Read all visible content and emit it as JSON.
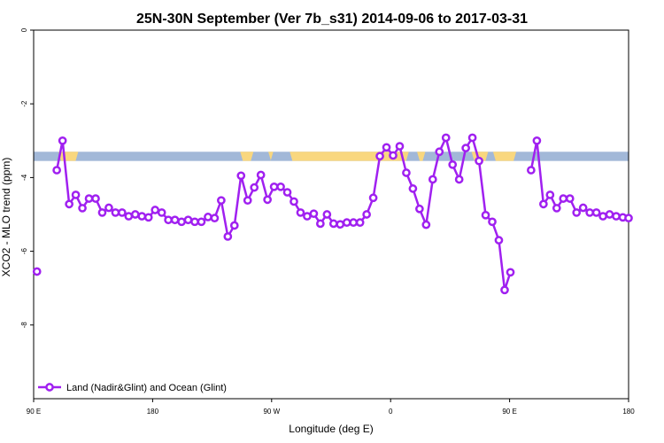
{
  "chart_data": {
    "type": "line",
    "title": "25N-30N September (Ver 7b_s31)   2014-09-06 to 2017-03-31",
    "xlabel": "Longitude (deg E)",
    "ylabel": "XCO2 - MLO trend (ppm)",
    "xlim": [
      -180,
      180
    ],
    "ylim": [
      -10,
      0
    ],
    "x_ticks": [
      {
        "value": -180,
        "label": "90 E"
      },
      {
        "value": -108,
        "label": "180"
      },
      {
        "value": -36,
        "label": "90 W"
      },
      {
        "value": 36,
        "label": "0"
      },
      {
        "value": 108,
        "label": "90 E"
      },
      {
        "value": 180,
        "label": "180"
      }
    ],
    "y_ticks": [
      {
        "value": 0,
        "label": "0"
      },
      {
        "value": -2,
        "label": "-2"
      },
      {
        "value": -4,
        "label": "-4"
      },
      {
        "value": -6,
        "label": "-6"
      },
      {
        "value": -8,
        "label": "-8"
      }
    ],
    "legend": {
      "position": "bottom-left",
      "label": "Land (Nadir&Glint) and Ocean (Glint)"
    },
    "colors": {
      "series": "#a020f0",
      "land": "#f9d77e",
      "ocean": "#a2b8d8"
    },
    "surface_band": {
      "y_range": [
        -3.55,
        -3.3
      ],
      "land_segments": [
        [
          -165,
          -153
        ],
        [
          -55,
          -47
        ],
        [
          -38,
          -35
        ],
        [
          -25,
          47
        ],
        [
          52,
          57
        ],
        [
          85,
          95
        ],
        [
          98,
          112
        ]
      ]
    },
    "series": [
      {
        "name": "Land (Nadir&Glint) and Ocean (Glint)",
        "segments": [
          [
            [
              -178,
              -6.55
            ]
          ],
          [
            [
              -166,
              -3.8
            ],
            [
              -162.5,
              -3.0
            ],
            [
              -158.5,
              -4.72
            ],
            [
              -154.5,
              -4.47
            ],
            [
              -150.5,
              -4.83
            ],
            [
              -146.5,
              -4.57
            ],
            [
              -142.5,
              -4.57
            ],
            [
              -138.5,
              -4.95
            ],
            [
              -134.5,
              -4.82
            ],
            [
              -130.5,
              -4.95
            ],
            [
              -126.5,
              -4.95
            ],
            [
              -122.5,
              -5.05
            ],
            [
              -118.5,
              -5.0
            ],
            [
              -114.5,
              -5.05
            ],
            [
              -110.5,
              -5.08
            ],
            [
              -106.5,
              -4.88
            ],
            [
              -102.5,
              -4.95
            ],
            [
              -98.5,
              -5.15
            ],
            [
              -94.5,
              -5.15
            ],
            [
              -90.5,
              -5.2
            ],
            [
              -86.5,
              -5.15
            ],
            [
              -82.5,
              -5.2
            ],
            [
              -78.5,
              -5.2
            ],
            [
              -74.5,
              -5.07
            ],
            [
              -70.5,
              -5.1
            ],
            [
              -66.5,
              -4.62
            ],
            [
              -62.5,
              -5.6
            ],
            [
              -58.5,
              -5.3
            ],
            [
              -54.5,
              -3.95
            ],
            [
              -50.5,
              -4.62
            ],
            [
              -46.5,
              -4.27
            ],
            [
              -42.5,
              -3.93
            ],
            [
              -38.5,
              -4.6
            ],
            [
              -34.5,
              -4.25
            ],
            [
              -30.5,
              -4.25
            ],
            [
              -26.5,
              -4.4
            ],
            [
              -22.5,
              -4.65
            ],
            [
              -18.5,
              -4.95
            ],
            [
              -14.5,
              -5.05
            ],
            [
              -10.5,
              -4.98
            ],
            [
              -6.5,
              -5.25
            ],
            [
              -2.5,
              -5.0
            ],
            [
              1.5,
              -5.25
            ],
            [
              5.5,
              -5.27
            ],
            [
              9.5,
              -5.22
            ],
            [
              13.5,
              -5.22
            ],
            [
              17.5,
              -5.22
            ],
            [
              21.5,
              -5.0
            ],
            [
              25.5,
              -4.55
            ],
            [
              29.5,
              -3.42
            ],
            [
              33.5,
              -3.18
            ],
            [
              37.5,
              -3.4
            ],
            [
              41.5,
              -3.15
            ],
            [
              45.5,
              -3.87
            ],
            [
              49.5,
              -4.3
            ],
            [
              53.5,
              -4.85
            ],
            [
              57.5,
              -5.28
            ],
            [
              61.5,
              -4.05
            ],
            [
              65.5,
              -3.3
            ],
            [
              69.5,
              -2.92
            ],
            [
              73.5,
              -3.65
            ],
            [
              77.5,
              -4.05
            ],
            [
              81.5,
              -3.2
            ],
            [
              85.5,
              -2.92
            ],
            [
              89.5,
              -3.55
            ],
            [
              93.5,
              -5.02
            ],
            [
              97.5,
              -5.2
            ],
            [
              101.5,
              -5.7
            ],
            [
              105,
              -7.05
            ],
            [
              108.5,
              -6.57
            ]
          ],
          [
            [
              121,
              -3.8
            ],
            [
              124.5,
              -3.0
            ],
            [
              128.5,
              -4.72
            ],
            [
              132.5,
              -4.47
            ],
            [
              136.5,
              -4.83
            ],
            [
              140.5,
              -4.57
            ],
            [
              144.5,
              -4.57
            ],
            [
              148.5,
              -4.95
            ],
            [
              152.5,
              -4.82
            ],
            [
              156.5,
              -4.95
            ],
            [
              160.5,
              -4.95
            ],
            [
              164.5,
              -5.05
            ],
            [
              168.5,
              -5.0
            ],
            [
              172.5,
              -5.05
            ],
            [
              176.5,
              -5.08
            ],
            [
              180,
              -5.1
            ]
          ]
        ]
      }
    ]
  }
}
